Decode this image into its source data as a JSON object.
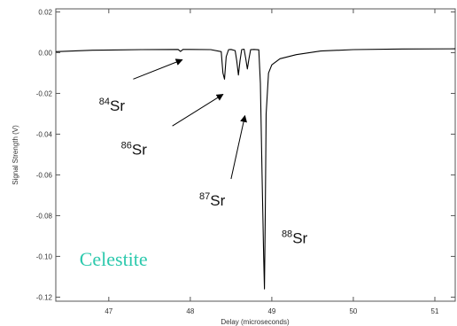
{
  "chart_data": {
    "type": "line",
    "xlabel": "Delay (microseconds)",
    "ylabel": "Signal Strength (V)",
    "xlim": [
      46.35,
      51.25
    ],
    "ylim": [
      -0.122,
      0.0215
    ],
    "x_ticks": [
      47,
      48,
      49,
      50,
      51
    ],
    "x_tick_labels": [
      "47",
      "48",
      "49",
      "50",
      "51"
    ],
    "y_ticks": [
      0.02,
      0.0,
      -0.02,
      -0.04,
      -0.06,
      -0.08,
      -0.1,
      -0.12
    ],
    "y_tick_labels": [
      "0.02",
      "0.00",
      "-0.02",
      "-0.04",
      "-0.06",
      "-0.08",
      "-0.10",
      "-0.12"
    ],
    "grid": false,
    "series": [
      {
        "color": "#000000",
        "x": [
          46.35,
          46.8,
          47.4,
          47.85,
          47.88,
          47.91,
          48.0,
          48.25,
          48.38,
          48.4,
          48.42,
          48.44,
          48.47,
          48.5,
          48.55,
          48.57,
          48.59,
          48.61,
          48.63,
          48.66,
          48.68,
          48.7,
          48.72,
          48.74,
          48.78,
          48.84,
          48.86,
          48.88,
          48.9,
          48.91,
          48.92,
          48.93,
          48.96,
          49.0,
          49.1,
          49.3,
          49.6,
          50.0,
          50.6,
          51.25
        ],
        "y": [
          0.0005,
          0.0012,
          0.0015,
          0.0016,
          0.0006,
          0.0016,
          0.0016,
          0.0015,
          0.0005,
          -0.01,
          -0.013,
          -0.002,
          0.0015,
          0.0016,
          0.001,
          -0.004,
          -0.011,
          -0.004,
          0.0015,
          0.0017,
          -0.003,
          -0.008,
          -0.003,
          0.0015,
          0.0016,
          0.0014,
          -0.015,
          -0.06,
          -0.1,
          -0.116,
          -0.08,
          -0.03,
          -0.01,
          -0.006,
          -0.003,
          -0.001,
          0.0008,
          0.0015,
          0.0018,
          0.0019
        ]
      }
    ],
    "annotations": [
      {
        "mass": "84",
        "symbol": "Sr",
        "text_x": 46.88,
        "text_y": -0.0285,
        "arrow_from": [
          47.3,
          -0.013
        ],
        "arrow_to": [
          47.9,
          -0.0035
        ]
      },
      {
        "mass": "86",
        "symbol": "Sr",
        "text_x": 47.15,
        "text_y": -0.05,
        "arrow_from": [
          47.78,
          -0.036
        ],
        "arrow_to": [
          48.4,
          -0.0205
        ]
      },
      {
        "mass": "87",
        "symbol": "Sr",
        "text_x": 48.11,
        "text_y": -0.075,
        "arrow_from": [
          48.5,
          -0.062
        ],
        "arrow_to": [
          48.67,
          -0.031
        ]
      },
      {
        "mass": "88",
        "symbol": "Sr",
        "text_x": 49.12,
        "text_y": -0.0935
      }
    ],
    "sample_label": "Celestite",
    "sample_label_color": "#2cc9ad",
    "sample_label_x": 46.64,
    "sample_label_y": -0.1045
  }
}
